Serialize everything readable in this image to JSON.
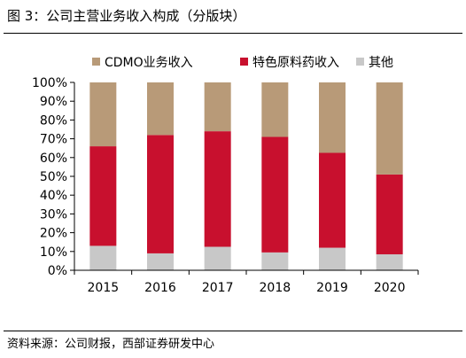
{
  "figure": {
    "title": "图 3：公司主营业务收入构成（分版块）",
    "source": "资料来源：公司财报，西部证券研发中心"
  },
  "chart_data": {
    "type": "bar",
    "stacked": true,
    "percent_stacked": true,
    "categories": [
      "2015",
      "2016",
      "2017",
      "2018",
      "2019",
      "2020"
    ],
    "series": [
      {
        "name": "其他",
        "color": "#c8c8c8",
        "values": [
          13,
          9,
          12.5,
          9.5,
          12,
          8.5
        ]
      },
      {
        "name": "特色原料药收入",
        "color": "#c8102e",
        "values": [
          53,
          63,
          61.5,
          61.5,
          50.5,
          42.5
        ]
      },
      {
        "name": "CDMO业务收入",
        "color": "#b89a78",
        "values": [
          34,
          28,
          26,
          29,
          37.5,
          49
        ]
      }
    ],
    "legend_order": [
      "CDMO业务收入",
      "特色原料药收入",
      "其他"
    ],
    "legend_position": "top",
    "yticks": [
      "0%",
      "10%",
      "20%",
      "30%",
      "40%",
      "50%",
      "60%",
      "70%",
      "80%",
      "90%",
      "100%"
    ],
    "ylim": [
      0,
      100
    ],
    "grid": false
  }
}
